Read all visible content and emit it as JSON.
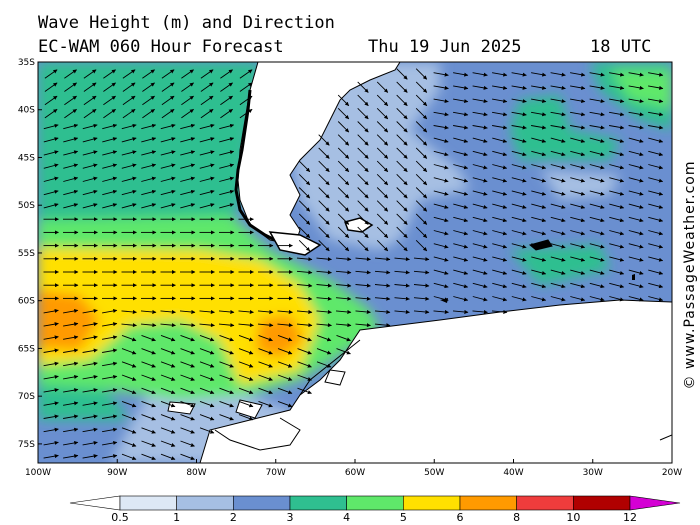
{
  "header": {
    "title_line1": "Wave Height (m) and Direction",
    "title_line2": "EC-WAM 060 Hour Forecast",
    "date": "Thu 19 Jun 2025",
    "time": "18 UTC"
  },
  "copyright": "© www.PassageWeather.com",
  "map": {
    "lon_range": [
      -100,
      -20
    ],
    "lat_range": [
      -77,
      -35
    ],
    "lat_labels": [
      "35S",
      "40S",
      "45S",
      "50S",
      "55S",
      "60S",
      "65S",
      "70S",
      "75S"
    ],
    "lat_values": [
      -35,
      -40,
      -45,
      -50,
      -55,
      -60,
      -65,
      -70,
      -75
    ],
    "lon_labels": [
      "100W",
      "90W",
      "80W",
      "70W",
      "60W",
      "50W",
      "40W",
      "30W",
      "20W"
    ],
    "lon_values": [
      -100,
      -90,
      -80,
      -70,
      -60,
      -50,
      -40,
      -30,
      -20
    ],
    "arrow_color": "#000000",
    "land_color": "#ffffff"
  },
  "colorbar": {
    "labels": [
      "0.5",
      "1",
      "2",
      "3",
      "4",
      "5",
      "6",
      "8",
      "10",
      "12"
    ],
    "colors": [
      "#ffffff",
      "#dde8f5",
      "#a6bfe3",
      "#6a8fd0",
      "#2fbf90",
      "#5fe86a",
      "#ffe000",
      "#ff9a00",
      "#ef3c3c",
      "#b00000",
      "#d400d4"
    ]
  }
}
